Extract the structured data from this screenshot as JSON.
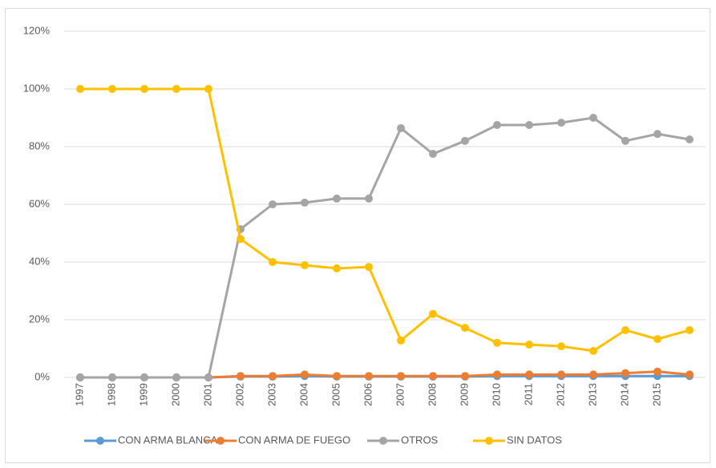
{
  "chart_data": {
    "type": "line",
    "categories": [
      "1997",
      "1998",
      "1999",
      "2000",
      "2001",
      "2002",
      "2003",
      "2004",
      "2005",
      "2006",
      "2007",
      "2008",
      "2009",
      "2010",
      "2011",
      "2012",
      "2013",
      "2014",
      "2015",
      null
    ],
    "series": [
      {
        "name": "CON ARMA BLANCA",
        "color": "#5b9bd5",
        "values": [
          0,
          0,
          0,
          0,
          0,
          0.3,
          0.3,
          0.5,
          0.3,
          0.3,
          0.3,
          0.3,
          0.3,
          0.5,
          0.5,
          0.5,
          0.5,
          0.5,
          0.5,
          0.5
        ]
      },
      {
        "name": "CON ARMA DE FUEGO",
        "color": "#ed7d31",
        "values": [
          0,
          0,
          0,
          0,
          0,
          0.5,
          0.5,
          1,
          0.5,
          0.5,
          0.5,
          0.5,
          0.5,
          1,
          1,
          1,
          1,
          1.5,
          2,
          1
        ]
      },
      {
        "name": "OTROS",
        "color": "#a5a5a5",
        "values": [
          0,
          0,
          0,
          0,
          0,
          51.4,
          60,
          60.6,
          62,
          62,
          86.4,
          77.5,
          82,
          87.5,
          87.5,
          88.3,
          90,
          82,
          84.4,
          82.5
        ]
      },
      {
        "name": "SIN DATOS",
        "color": "#ffc000",
        "values": [
          100,
          100,
          100,
          100,
          100,
          48,
          40,
          38.9,
          37.8,
          38.3,
          12.8,
          22,
          17.2,
          12,
          11.4,
          10.8,
          9.2,
          16.4,
          13.3,
          16.4
        ]
      }
    ],
    "ylim": [
      0,
      120
    ],
    "yticks": [
      {
        "value": 0,
        "label": "0%"
      },
      {
        "value": 20,
        "label": "20%"
      },
      {
        "value": 40,
        "label": "40%"
      },
      {
        "value": 60,
        "label": "60%"
      },
      {
        "value": 80,
        "label": "80%"
      },
      {
        "value": 100,
        "label": "100%"
      },
      {
        "value": 120,
        "label": "120%"
      }
    ],
    "grid": true,
    "legend": "bottom"
  }
}
